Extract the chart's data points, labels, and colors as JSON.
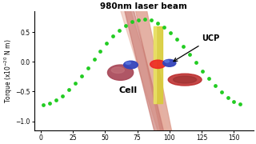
{
  "title": "980nm laser beam",
  "ylim": [
    -1.15,
    0.85
  ],
  "xlim": [
    -5,
    165
  ],
  "yticks": [
    -1.0,
    -0.5,
    0.0,
    0.5
  ],
  "xticks": [
    0,
    25,
    50,
    75,
    100,
    125,
    150
  ],
  "dot_color": "#22cc22",
  "dot_size": 12,
  "cell_label": "Cell",
  "ucp_label": "UCP",
  "bg_color": "#ffffff",
  "title_fontsize": 8,
  "ylabel": "Torque (x10$^{-20}$ N m)",
  "cell_main_color": "#d4968c",
  "cell_inner_color": "#c47a72",
  "cell_dark_color": "#b56060",
  "nucleus_color": "#a04858",
  "organelle_color": "#c03030",
  "blue_ball_color": "#4455bb",
  "laser_color": "#e0d040",
  "red_trap_color": "#cc2222",
  "arrow_color": "#111111"
}
